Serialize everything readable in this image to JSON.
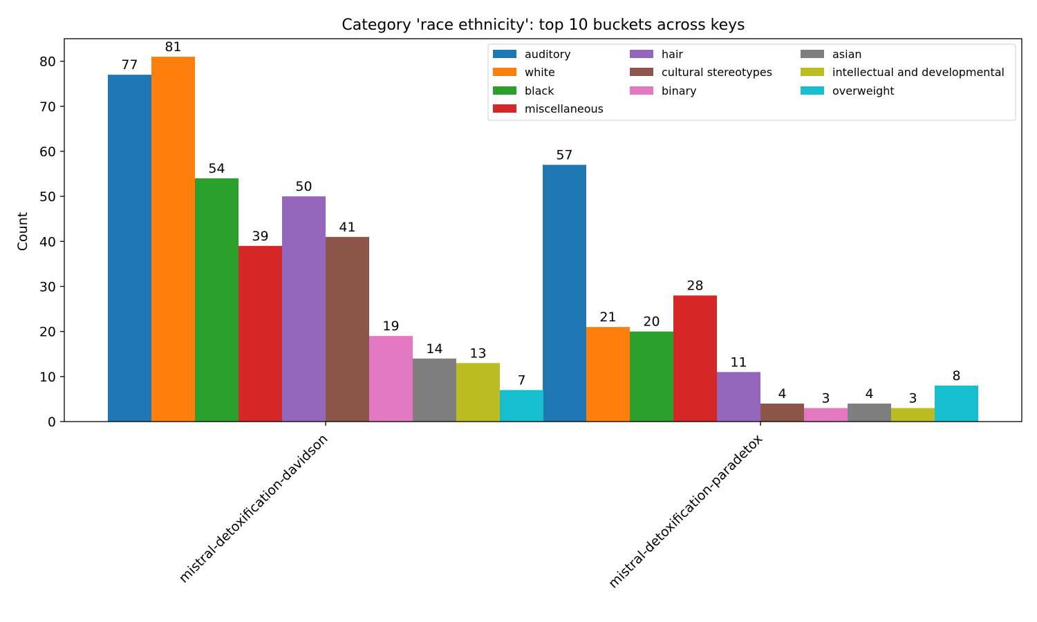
{
  "chart_data": {
    "type": "bar",
    "title": "Category 'race ethnicity': top 10 buckets across keys",
    "xlabel": "",
    "ylabel": "Count",
    "categories": [
      "mistral-detoxification-davidson",
      "mistral-detoxification-paradetox"
    ],
    "ylim": [
      0,
      85
    ],
    "yticks": [
      0,
      10,
      20,
      30,
      40,
      50,
      60,
      70,
      80
    ],
    "grid": false,
    "legend_position": "top-right",
    "legend_columns": 3,
    "series": [
      {
        "name": "auditory",
        "color": "#1f77b4",
        "values": [
          77,
          57
        ]
      },
      {
        "name": "white",
        "color": "#ff7f0e",
        "values": [
          81,
          21
        ]
      },
      {
        "name": "black",
        "color": "#2ca02c",
        "values": [
          54,
          20
        ]
      },
      {
        "name": "miscellaneous",
        "color": "#d62728",
        "values": [
          39,
          28
        ]
      },
      {
        "name": "hair",
        "color": "#9467bd",
        "values": [
          50,
          11
        ]
      },
      {
        "name": "cultural stereotypes",
        "color": "#8c564b",
        "values": [
          41,
          4
        ]
      },
      {
        "name": "binary",
        "color": "#e377c2",
        "values": [
          19,
          3
        ]
      },
      {
        "name": "asian",
        "color": "#7f7f7f",
        "values": [
          14,
          4
        ]
      },
      {
        "name": "intellectual and developmental",
        "color": "#bcbd22",
        "values": [
          13,
          3
        ]
      },
      {
        "name": "overweight",
        "color": "#17becf",
        "values": [
          7,
          8
        ]
      }
    ]
  }
}
